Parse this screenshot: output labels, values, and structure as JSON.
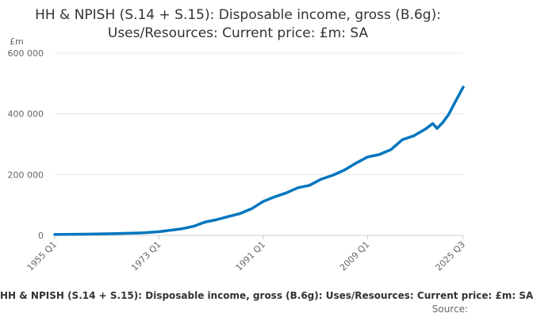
{
  "title_lines": [
    "HH & NPISH (S.14 + S.15): Disposable income, gross (B.6g):",
    "Uses/Resources: Current price: £m: SA"
  ],
  "footer": {
    "series_label": "HH & NPISH (S.14 + S.15): Disposable income, gross (B.6g): Uses/Resources: Current price: £m: SA",
    "source_label": "Source:"
  },
  "colors": {
    "series": "#0076be",
    "grid": "#e6e6e6",
    "axis_text": "#666666"
  },
  "chart_data": {
    "type": "line",
    "title": "HH & NPISH (S.14 + S.15): Disposable income, gross (B.6g): Uses/Resources: Current price: £m: SA",
    "ylabel": "£m",
    "xlabel": "",
    "ylim": [
      0,
      600000
    ],
    "yticks": [
      0,
      200000,
      400000,
      600000
    ],
    "ytick_labels": [
      "0",
      "200 000",
      "400 000",
      "600 000"
    ],
    "xlim": [
      "1955 Q1",
      "2025 Q3"
    ],
    "xticks": [
      "1955 Q1",
      "1973 Q1",
      "1991 Q1",
      "2009 Q1",
      "2025 Q3"
    ],
    "grid": "horizontal",
    "legend": "none",
    "series": [
      {
        "x": [
          "1955 Q1",
          "1960 Q1",
          "1965 Q1",
          "1970 Q1",
          "1973 Q1",
          "1975 Q1",
          "1977 Q1",
          "1979 Q1",
          "1981 Q1",
          "1983 Q1",
          "1985 Q1",
          "1987 Q1",
          "1989 Q1",
          "1991 Q1",
          "1993 Q1",
          "1995 Q1",
          "1997 Q1",
          "1999 Q1",
          "2001 Q1",
          "2003 Q1",
          "2005 Q1",
          "2007 Q1",
          "2009 Q1",
          "2011 Q1",
          "2013 Q1",
          "2015 Q1",
          "2017 Q1",
          "2019 Q1",
          "2020 Q2",
          "2021 Q1",
          "2022 Q1",
          "2023 Q1",
          "2024 Q1",
          "2025 Q3"
        ],
        "values": [
          3000,
          4000,
          5500,
          8000,
          12000,
          17000,
          22000,
          30000,
          44000,
          52000,
          62000,
          72000,
          88000,
          112000,
          127000,
          140000,
          157000,
          165000,
          185000,
          198000,
          215000,
          238000,
          258000,
          266000,
          282000,
          315000,
          328000,
          350000,
          368000,
          352000,
          372000,
          398000,
          435000,
          488000
        ]
      }
    ]
  }
}
